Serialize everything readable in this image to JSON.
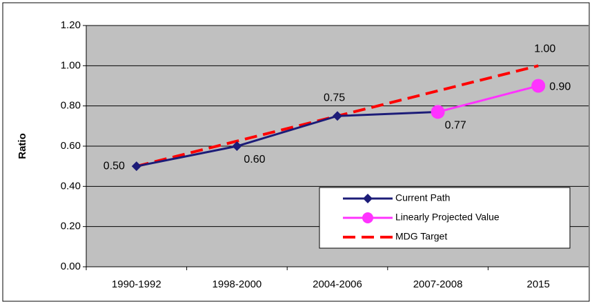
{
  "chart_data": {
    "type": "line",
    "y_label": "Ratio",
    "categories": [
      "1990-1992",
      "1998-2000",
      "2004-2006",
      "2007-2008",
      "2015"
    ],
    "series": [
      {
        "name": "Current Path",
        "color": "#1c1c78",
        "marker": "diamond",
        "dash": false,
        "values": [
          0.5,
          0.6,
          0.75,
          0.77,
          null
        ],
        "value_labels": [
          "0.50",
          "0.60",
          "0.75",
          "0.77",
          null
        ]
      },
      {
        "name": "Linearly Projected Value",
        "color": "#ff33ff",
        "marker": "circle",
        "dash": false,
        "values": [
          null,
          null,
          null,
          0.77,
          0.9
        ],
        "value_labels": [
          null,
          null,
          null,
          null,
          "0.90"
        ]
      },
      {
        "name": "MDG Target",
        "color": "#ff0000",
        "marker": "none",
        "dash": true,
        "values": [
          0.5,
          0.625,
          0.75,
          0.875,
          1.0
        ],
        "value_labels": [
          null,
          null,
          null,
          null,
          "1.00"
        ]
      }
    ],
    "ylim": [
      0,
      1.2
    ],
    "yticks": [
      {
        "value": 0,
        "label": "0.00"
      },
      {
        "value": 0.2,
        "label": "0.20"
      },
      {
        "value": 0.4,
        "label": "0.40"
      },
      {
        "value": 0.6,
        "label": "0.60"
      },
      {
        "value": 0.8,
        "label": "0.80"
      },
      {
        "value": 1.0,
        "label": "1.00"
      },
      {
        "value": 1.2,
        "label": "1.20"
      }
    ],
    "grid": true,
    "legend": "lower-right"
  }
}
